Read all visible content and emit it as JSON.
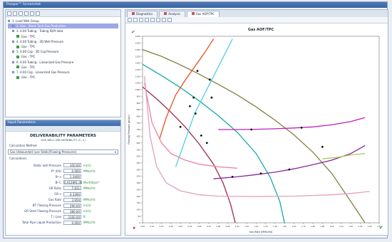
{
  "window": {
    "title": "Prosper™ Screenshot"
  },
  "tree": {
    "items": [
      {
        "label": "1. Load Well Group",
        "level": 0,
        "selected": false,
        "leaf": false
      },
      {
        "label": "2. Gas - Stock Tank Gas Production",
        "level": 1,
        "selected": true,
        "leaf": false
      },
      {
        "label": "3. 4.00 Tubing - Tubing ID/ft data",
        "level": 1,
        "selected": false,
        "leaf": false
      },
      {
        "label": "Gas - TPC",
        "level": 2,
        "selected": false,
        "leaf": true
      },
      {
        "label": "4. 4.00 Tubing - 3D Well Pressure",
        "level": 1,
        "selected": false,
        "leaf": false
      },
      {
        "label": "Gas - TPC",
        "level": 2,
        "selected": false,
        "leaf": true
      },
      {
        "label": "5. 4.00 Csg - 3D Csg Pressure",
        "level": 1,
        "selected": false,
        "leaf": false
      },
      {
        "label": "Gas - TPC",
        "level": 2,
        "selected": false,
        "leaf": true
      },
      {
        "label": "6. 4.00 Tubing - Linearized Gas Pressure",
        "level": 1,
        "selected": false,
        "leaf": false
      },
      {
        "label": "Gas - TPC",
        "level": 2,
        "selected": false,
        "leaf": true
      },
      {
        "label": "7. 4.00 Csg - Linearized Gas Pressure",
        "level": 1,
        "selected": false,
        "leaf": false
      },
      {
        "label": "Gas - TPC",
        "level": 2,
        "selected": false,
        "leaf": true
      }
    ]
  },
  "params": {
    "header": "Input Parameters",
    "title": "DELIVERABILITY PARAMETERS",
    "subtitle": "GAS WELL DELIVERABILITY (C, n)",
    "calc_method_label": "Calculation Method",
    "calc_method_value": "Gas Unbounded (use Static/Flowing Pressures)",
    "calc_label": "Calculations",
    "rows": [
      {
        "label": "Static well Pressure",
        "value": "350.00",
        "unit": "in(m)"
      },
      {
        "label": "P* (f/d)",
        "value": "0.000",
        "unit": "MMscf/d"
      },
      {
        "label": "Bᵍ n",
        "value": "1.3400",
        "unit": ""
      },
      {
        "label": "Bᵍ C",
        "value": "0.012891.00",
        "unit": "Mscf/d/psi²ⁿ"
      },
      {
        "label": "GR Ratio",
        "value": "7.811",
        "unit": "MMscf/d"
      },
      {
        "label": "GR n",
        "value": "0.3390",
        "unit": ""
      },
      {
        "label": "Gas Rate",
        "value": "3.959",
        "unit": "MMscf/d"
      },
      {
        "label": "BT Flowing Pressure",
        "value": "290.00",
        "unit": "in(m)"
      },
      {
        "label": "GR Start Flowing Pressure",
        "value": "380.00",
        "unit": "in(m)"
      },
      {
        "label": "T / Line",
        "value": "2160.00",
        "unit": "ft"
      },
      {
        "label": "Total Pipe Liquid Production",
        "value": "0.000",
        "unit": "MMscf/d"
      }
    ]
  },
  "tabs": [
    {
      "label": "Diagnostics",
      "active": false
    },
    {
      "label": "Analysis",
      "active": false
    },
    {
      "label": "Gas AOP/TPC",
      "active": true
    }
  ],
  "chart_data": {
    "type": "line",
    "title": "Gas AOF/TPC",
    "xlabel": "Gas Rate (MMscf/d)",
    "ylabel": "Flowing Pressure (psi(a))",
    "xlim": [
      0,
      2.5
    ],
    "ylim": [
      0,
      1400
    ],
    "x_ticks": [
      0.0,
      0.1,
      0.2,
      0.3,
      0.4,
      0.5,
      0.6,
      0.7,
      0.8,
      0.9,
      1.0,
      1.1,
      1.2,
      1.3,
      1.4,
      1.5,
      1.6,
      1.7,
      1.8,
      1.9,
      2.0,
      2.1,
      2.2,
      2.3,
      2.4,
      2.5
    ],
    "y_ticks": [
      0,
      50,
      100,
      150,
      200,
      250,
      300,
      350,
      400,
      450,
      500,
      550,
      600,
      650,
      700,
      750,
      800,
      850,
      900,
      950,
      1000,
      1050,
      1100,
      1150,
      1200,
      1250,
      1300,
      1350,
      1400
    ],
    "grid": false,
    "series": [
      {
        "color": "#808040",
        "x": [
          0,
          0.2,
          0.4,
          0.6,
          0.8,
          1.0,
          1.2,
          1.4,
          1.6,
          1.8,
          2.0,
          2.2,
          2.35
        ],
        "y": [
          1300,
          1250,
          1185,
          1115,
          1040,
          960,
          870,
          770,
          660,
          530,
          370,
          160,
          0
        ]
      },
      {
        "color": "#18a8a8",
        "x": [
          0,
          0.2,
          0.4,
          0.6,
          0.8,
          1.0,
          1.2,
          1.35,
          1.45,
          1.5
        ],
        "y": [
          1190,
          1105,
          1015,
          915,
          805,
          680,
          520,
          340,
          160,
          0
        ]
      },
      {
        "color": "#a02848",
        "x": [
          0,
          0.15,
          0.3,
          0.45,
          0.6,
          0.75,
          0.85,
          0.93,
          0.98
        ],
        "y": [
          1020,
          930,
          830,
          720,
          590,
          440,
          300,
          140,
          0
        ]
      },
      {
        "color": "#e05020",
        "x": [
          0.18,
          0.25,
          0.35,
          0.45,
          0.55,
          0.65,
          0.75
        ],
        "y": [
          630,
          790,
          960,
          1070,
          1170,
          1270,
          1380
        ]
      },
      {
        "color": "#50d0e0",
        "x": [
          0.35,
          0.45,
          0.55,
          0.65,
          0.75,
          0.85,
          0.95
        ],
        "y": [
          420,
          620,
          820,
          960,
          1100,
          1240,
          1380
        ]
      },
      {
        "color": "#c020c0",
        "x": [
          0.8,
          1.0,
          1.2,
          1.4,
          1.6,
          1.8,
          2.0,
          2.2,
          2.35
        ],
        "y": [
          700,
          700,
          702,
          706,
          712,
          720,
          735,
          760,
          790
        ]
      },
      {
        "color": "#9020a0",
        "x": [
          0.75,
          1.0,
          1.2,
          1.4,
          1.6,
          1.8,
          2.0,
          2.2,
          2.35
        ],
        "y": [
          330,
          345,
          362,
          380,
          405,
          436,
          470,
          520,
          580
        ]
      },
      {
        "color": "#f080a0",
        "x": [
          0.02,
          0.1,
          0.2,
          0.3,
          0.45,
          0.6,
          0.8,
          1.0
        ],
        "y": [
          1050,
          750,
          600,
          520,
          470,
          440,
          420,
          410
        ]
      },
      {
        "color": "#e0a0c0",
        "x": [
          0.02,
          0.08,
          0.15,
          0.25,
          0.4,
          0.6,
          0.8,
          1.0,
          1.2,
          1.4,
          1.6,
          1.8,
          2.0,
          2.2,
          2.4
        ],
        "y": [
          1100,
          650,
          420,
          300,
          240,
          210,
          200,
          198,
          197,
          198,
          200,
          205,
          210,
          220,
          235
        ]
      },
      {
        "color": "#a0d060",
        "x": [
          1.9,
          2.05,
          2.2,
          2.35
        ],
        "y": [
          480,
          490,
          510,
          520
        ]
      }
    ],
    "points": [
      {
        "x": 0.58,
        "y": 1140
      },
      {
        "x": 0.71,
        "y": 1075
      },
      {
        "x": 0.54,
        "y": 940
      },
      {
        "x": 0.5,
        "y": 875
      },
      {
        "x": 0.73,
        "y": 940
      },
      {
        "x": 0.4,
        "y": 720
      },
      {
        "x": 0.56,
        "y": 820
      },
      {
        "x": 0.62,
        "y": 655
      },
      {
        "x": 0.68,
        "y": 600
      },
      {
        "x": 0.95,
        "y": 345
      },
      {
        "x": 1.25,
        "y": 370
      },
      {
        "x": 1.55,
        "y": 400
      },
      {
        "x": 1.15,
        "y": 700
      },
      {
        "x": 1.68,
        "y": 714
      },
      {
        "x": 1.9,
        "y": 570
      }
    ]
  }
}
